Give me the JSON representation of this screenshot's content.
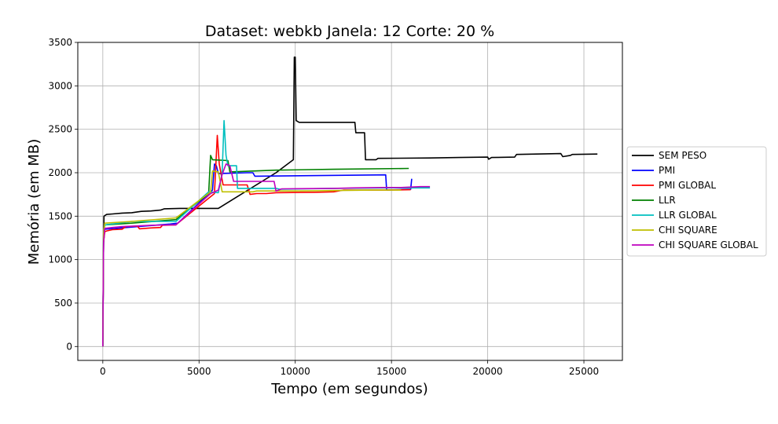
{
  "chart_data": {
    "type": "line",
    "title": "Dataset: webkb Janela: 12 Corte: 20 %",
    "xlabel": "Tempo (em segundos)",
    "ylabel": "Memória (em MB)",
    "xlim": [
      -1300,
      27000
    ],
    "ylim": [
      -160,
      3500
    ],
    "xticks": [
      0,
      5000,
      10000,
      15000,
      20000,
      25000
    ],
    "yticks": [
      0,
      500,
      1000,
      1500,
      2000,
      2500,
      3000,
      3500
    ],
    "grid": true,
    "legend_position": "right",
    "series": [
      {
        "name": "SEM PESO",
        "color": "#000000",
        "points": [
          [
            0,
            0
          ],
          [
            30,
            1000
          ],
          [
            60,
            1500
          ],
          [
            200,
            1520
          ],
          [
            500,
            1525
          ],
          [
            1000,
            1535
          ],
          [
            1500,
            1540
          ],
          [
            2000,
            1555
          ],
          [
            2500,
            1560
          ],
          [
            3000,
            1570
          ],
          [
            3200,
            1585
          ],
          [
            4000,
            1590
          ],
          [
            5000,
            1590
          ],
          [
            6000,
            1590
          ],
          [
            9000,
            2000
          ],
          [
            9900,
            2150
          ],
          [
            9950,
            3330
          ],
          [
            10000,
            3330
          ],
          [
            10050,
            2600
          ],
          [
            10200,
            2580
          ],
          [
            11000,
            2580
          ],
          [
            12000,
            2580
          ],
          [
            13100,
            2580
          ],
          [
            13150,
            2460
          ],
          [
            13600,
            2460
          ],
          [
            13650,
            2150
          ],
          [
            14200,
            2150
          ],
          [
            14300,
            2165
          ],
          [
            17000,
            2170
          ],
          [
            18500,
            2175
          ],
          [
            20000,
            2180
          ],
          [
            20050,
            2155
          ],
          [
            20200,
            2175
          ],
          [
            21400,
            2180
          ],
          [
            21500,
            2210
          ],
          [
            23800,
            2220
          ],
          [
            23900,
            2185
          ],
          [
            24300,
            2200
          ],
          [
            24400,
            2210
          ],
          [
            25700,
            2215
          ]
        ]
      },
      {
        "name": "PMI",
        "color": "#0000ff",
        "points": [
          [
            0,
            0
          ],
          [
            40,
            1200
          ],
          [
            100,
            1350
          ],
          [
            3500,
            1410
          ],
          [
            3900,
            1420
          ],
          [
            5700,
            1800
          ],
          [
            5800,
            2100
          ],
          [
            5900,
            2080
          ],
          [
            6000,
            1990
          ],
          [
            7500,
            2000
          ],
          [
            7800,
            2000
          ],
          [
            7900,
            1960
          ],
          [
            14700,
            1975
          ],
          [
            14750,
            1800
          ],
          [
            16000,
            1810
          ],
          [
            16050,
            1930
          ]
        ]
      },
      {
        "name": "PMI GLOBAL",
        "color": "#ff0000",
        "points": [
          [
            0,
            0
          ],
          [
            40,
            1200
          ],
          [
            100,
            1320
          ],
          [
            200,
            1330
          ],
          [
            500,
            1345
          ],
          [
            1000,
            1350
          ],
          [
            1200,
            1380
          ],
          [
            1800,
            1385
          ],
          [
            1900,
            1355
          ],
          [
            2500,
            1365
          ],
          [
            3000,
            1370
          ],
          [
            3100,
            1395
          ],
          [
            3800,
            1400
          ],
          [
            3900,
            1420
          ],
          [
            5800,
            1760
          ],
          [
            5950,
            2430
          ],
          [
            6050,
            2100
          ],
          [
            6250,
            1860
          ],
          [
            7500,
            1860
          ],
          [
            7650,
            1750
          ],
          [
            8000,
            1760
          ],
          [
            8500,
            1760
          ],
          [
            9000,
            1770
          ],
          [
            11000,
            1775
          ],
          [
            12000,
            1780
          ],
          [
            12500,
            1800
          ],
          [
            14500,
            1800
          ],
          [
            16000,
            1805
          ]
        ]
      },
      {
        "name": "LLR",
        "color": "#008000",
        "points": [
          [
            0,
            0
          ],
          [
            40,
            1300
          ],
          [
            100,
            1400
          ],
          [
            1500,
            1420
          ],
          [
            3800,
            1460
          ],
          [
            5500,
            1760
          ],
          [
            5600,
            2200
          ],
          [
            5700,
            2150
          ],
          [
            6500,
            2140
          ],
          [
            6600,
            2010
          ],
          [
            9000,
            2030
          ],
          [
            12000,
            2040
          ],
          [
            15900,
            2050
          ]
        ]
      },
      {
        "name": "LLR GLOBAL",
        "color": "#00bfbf",
        "points": [
          [
            0,
            0
          ],
          [
            40,
            1300
          ],
          [
            100,
            1400
          ],
          [
            1200,
            1430
          ],
          [
            1500,
            1440
          ],
          [
            3800,
            1440
          ],
          [
            5500,
            1780
          ],
          [
            6000,
            1770
          ],
          [
            6200,
            2000
          ],
          [
            6300,
            2600
          ],
          [
            6400,
            2200
          ],
          [
            6500,
            2080
          ],
          [
            6950,
            2080
          ],
          [
            7000,
            1820
          ],
          [
            9000,
            1820
          ],
          [
            9200,
            1810
          ],
          [
            12000,
            1820
          ],
          [
            15000,
            1825
          ],
          [
            17000,
            1825
          ]
        ]
      },
      {
        "name": "CHI SQUARE",
        "color": "#bfbf00",
        "points": [
          [
            0,
            0
          ],
          [
            40,
            1300
          ],
          [
            100,
            1420
          ],
          [
            1500,
            1440
          ],
          [
            3800,
            1480
          ],
          [
            5600,
            1780
          ],
          [
            5700,
            2020
          ],
          [
            6000,
            2010
          ],
          [
            6200,
            1780
          ],
          [
            7800,
            1780
          ],
          [
            8000,
            1790
          ],
          [
            10000,
            1790
          ],
          [
            12000,
            1795
          ],
          [
            14000,
            1800
          ],
          [
            15500,
            1800
          ]
        ]
      },
      {
        "name": "CHI SQUARE GLOBAL",
        "color": "#bf00bf",
        "points": [
          [
            0,
            0
          ],
          [
            40,
            1200
          ],
          [
            100,
            1360
          ],
          [
            500,
            1370
          ],
          [
            1000,
            1380
          ],
          [
            1500,
            1385
          ],
          [
            2500,
            1395
          ],
          [
            3500,
            1400
          ],
          [
            3800,
            1400
          ],
          [
            5600,
            1760
          ],
          [
            6000,
            1800
          ],
          [
            6200,
            1980
          ],
          [
            6400,
            2100
          ],
          [
            6600,
            2080
          ],
          [
            6800,
            1900
          ],
          [
            8000,
            1900
          ],
          [
            8900,
            1900
          ],
          [
            9000,
            1790
          ],
          [
            9300,
            1815
          ],
          [
            12000,
            1820
          ],
          [
            13000,
            1825
          ],
          [
            14500,
            1830
          ],
          [
            15500,
            1830
          ],
          [
            16500,
            1840
          ],
          [
            17000,
            1840
          ]
        ]
      }
    ]
  }
}
